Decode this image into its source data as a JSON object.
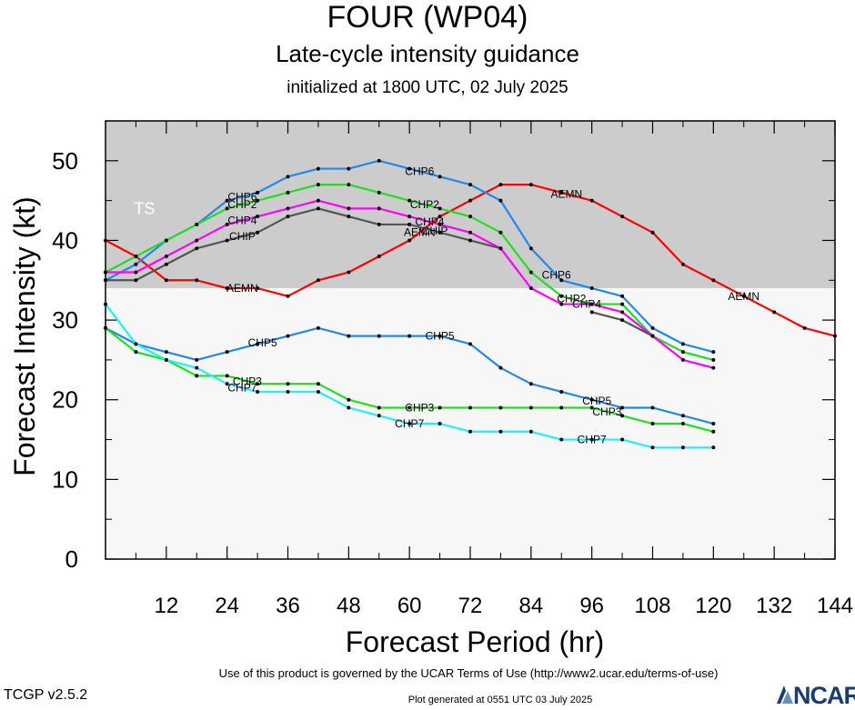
{
  "header": {
    "title": "FOUR (WP04)",
    "subtitle": "Late-cycle intensity guidance",
    "init": "initialized at 1800 UTC, 02 July 2025"
  },
  "footer": {
    "terms": "Use of this product is governed by the UCAR Terms of Use (http://www2.ucar.edu/terms-of-use)",
    "generated": "Plot generated at 0551 UTC   03 July 2025",
    "version": "TCGP v2.5.2",
    "logo": "NCAR"
  },
  "chart_data": {
    "type": "line",
    "xlabel": "Forecast Period (hr)",
    "ylabel": "Forecast Intensity (kt)",
    "xlim": [
      0,
      144
    ],
    "ylim": [
      0,
      55
    ],
    "xticks": [
      12,
      24,
      36,
      48,
      60,
      72,
      84,
      96,
      108,
      120,
      132,
      144
    ],
    "yticks": [
      0,
      10,
      20,
      30,
      40,
      50
    ],
    "bands": [
      {
        "label": "TS",
        "from": 34,
        "to": 55,
        "color": "#cccccc"
      },
      {
        "label": "",
        "from": 0,
        "to": 34,
        "color": "#f7f7f7"
      }
    ],
    "series": [
      {
        "name": "AEMN",
        "color": "#ff0000",
        "x": [
          0,
          6,
          12,
          18,
          24,
          30,
          36,
          42,
          48,
          54,
          60,
          66,
          72,
          78,
          84,
          90,
          96,
          102,
          108,
          114,
          120,
          126,
          132,
          138,
          144
        ],
        "y": [
          40,
          38,
          35,
          35,
          34,
          34,
          33,
          35,
          36,
          38,
          40,
          43,
          45,
          47,
          47,
          46,
          45,
          43,
          41,
          37,
          35,
          33,
          31,
          29,
          28
        ],
        "labels_at": [
          27,
          62,
          91,
          126
        ]
      },
      {
        "name": "CHP6",
        "color": "#2288ee",
        "x": [
          0,
          6,
          12,
          18,
          24,
          30,
          36,
          42,
          48,
          54,
          60,
          66,
          72,
          78,
          84,
          90,
          96,
          102,
          108,
          114,
          120
        ],
        "y": [
          35,
          37,
          40,
          42,
          45,
          46,
          48,
          49,
          49,
          50,
          49,
          48,
          47,
          45,
          39,
          35,
          34,
          33,
          29,
          27,
          26
        ],
        "labels_at": [
          27,
          62,
          89
        ]
      },
      {
        "name": "CHP2",
        "color": "#22dd22",
        "x": [
          0,
          6,
          12,
          18,
          24,
          30,
          36,
          42,
          48,
          54,
          60,
          66,
          72,
          78,
          84,
          90,
          96,
          102,
          108,
          114,
          120
        ],
        "y": [
          36,
          38,
          40,
          42,
          44,
          45,
          46,
          47,
          47,
          46,
          45,
          44,
          43,
          41,
          36,
          33,
          32,
          32,
          28,
          26,
          25
        ],
        "labels_at": [
          27,
          63,
          92
        ]
      },
      {
        "name": "CHP4",
        "color": "#ff00ff",
        "x": [
          0,
          6,
          12,
          18,
          24,
          30,
          36,
          42,
          48,
          54,
          60,
          66,
          72,
          78,
          84,
          90,
          96,
          102,
          108,
          114,
          120
        ],
        "y": [
          36,
          36,
          38,
          40,
          42,
          43,
          44,
          45,
          44,
          44,
          43,
          42,
          41,
          39,
          34,
          32,
          32,
          31,
          28,
          25,
          24
        ],
        "labels_at": [
          27,
          64,
          95
        ]
      },
      {
        "name": "CHIP",
        "color": "#555555",
        "x": [
          0,
          6,
          12,
          18,
          24,
          30,
          36,
          42,
          48,
          54,
          60,
          66,
          72,
          78,
          84,
          90,
          96,
          102,
          108,
          114,
          120
        ],
        "y": [
          35,
          35,
          37,
          39,
          40,
          41,
          43,
          44,
          43,
          42,
          42,
          41,
          40,
          39,
          null,
          null,
          31,
          30,
          28,
          null,
          null
        ],
        "labels_at": [
          27,
          65,
          93
        ]
      },
      {
        "name": "CHP5",
        "color": "#2288ee",
        "x": [
          0,
          6,
          12,
          18,
          24,
          30,
          36,
          42,
          48,
          54,
          60,
          66,
          72,
          78,
          84,
          90,
          96,
          102,
          108,
          114,
          120
        ],
        "y": [
          29,
          27,
          26,
          25,
          26,
          27,
          28,
          29,
          28,
          28,
          28,
          28,
          27,
          24,
          22,
          21,
          20,
          19,
          19,
          18,
          17
        ],
        "labels_at": [
          31,
          66,
          97
        ]
      },
      {
        "name": "CHP3",
        "color": "#22dd22",
        "x": [
          0,
          6,
          12,
          18,
          24,
          30,
          36,
          42,
          48,
          54,
          60,
          66,
          72,
          78,
          84,
          90,
          96,
          102,
          108,
          114,
          120
        ],
        "y": [
          29,
          26,
          25,
          23,
          23,
          22,
          22,
          22,
          20,
          19,
          19,
          19,
          19,
          19,
          19,
          19,
          19,
          18,
          17,
          17,
          16
        ],
        "labels_at": [
          28,
          62,
          99
        ]
      },
      {
        "name": "CHP7",
        "color": "#22eeff",
        "x": [
          0,
          6,
          12,
          18,
          24,
          30,
          36,
          42,
          48,
          54,
          60,
          66,
          72,
          78,
          84,
          90,
          96,
          102,
          108,
          114,
          120
        ],
        "y": [
          32,
          27,
          25,
          24,
          22,
          21,
          21,
          21,
          19,
          18,
          17,
          17,
          16,
          16,
          16,
          15,
          15,
          15,
          14,
          14,
          14
        ],
        "labels_at": [
          27,
          60,
          96
        ]
      }
    ]
  }
}
